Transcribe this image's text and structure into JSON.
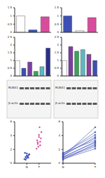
{
  "chart_data": [
    {
      "type": "bar",
      "categories": [
        null,
        null,
        null
      ],
      "values": [
        1,
        0.15,
        0.95
      ],
      "colors": [
        "#ffffff",
        "#3d4fb5",
        "#d84c9c"
      ],
      "ylim": [
        0,
        1.5
      ],
      "yticks": [
        0,
        0.5,
        1,
        1.5
      ],
      "tick_labels": "y"
    },
    {
      "type": "bar",
      "categories": [
        null,
        null,
        null
      ],
      "values": [
        1,
        0.1,
        0.9
      ],
      "colors": [
        "#3d4fb5",
        "#ffffff",
        "#d84c9c"
      ],
      "ylim": [
        0,
        1.5
      ],
      "yticks": [
        0,
        0.5,
        1,
        1.5
      ],
      "tick_labels": "y"
    },
    {
      "type": "bar",
      "categories": [
        null,
        null,
        null,
        null,
        null,
        null
      ],
      "values": [
        1,
        0.5,
        0.9,
        0.3,
        0.6,
        1.8
      ],
      "colors": [
        "#ffffff",
        "#3d4fb5",
        "#7b3fa0",
        "#3aa35a",
        "#5fb8c2",
        "#2b2f8a"
      ],
      "ylim": [
        0,
        2.5
      ],
      "yticks": [
        0,
        0.5,
        1,
        1.5,
        2,
        2.5
      ],
      "tick_labels": "y"
    },
    {
      "type": "bar",
      "categories": [
        null,
        null,
        null,
        null,
        null,
        null
      ],
      "values": [
        1,
        1.9,
        1.6,
        1.7,
        1.4,
        1
      ],
      "colors": [
        "#ffffff",
        "#7b3fa0",
        "#3aa35a",
        "#5fb8c2",
        "#8a3f9e",
        "#3d4fb5"
      ],
      "ylim": [
        0,
        2.5
      ],
      "yticks": [
        0,
        0.5,
        1,
        1.5,
        2,
        2.5
      ],
      "tick_labels": "y"
    },
    {
      "type": "scatter",
      "xlim": [
        0,
        3
      ],
      "xticks": [
        {
          "value": 1,
          "label": "N"
        },
        {
          "value": 2,
          "label": "T"
        }
      ],
      "ylim": [
        0,
        6
      ],
      "yticks": [
        0,
        2,
        4,
        6
      ],
      "groups": [
        {
          "color": "#3d4fb5",
          "x": [
            0.8,
            0.9,
            1.0,
            1.1,
            1.2,
            0.85,
            0.95,
            1.05,
            1.15,
            0.9,
            1.0,
            1.1
          ],
          "values": [
            0.6,
            0.9,
            1.1,
            0.8,
            1.3,
            1.5,
            0.7,
            1.0,
            1.2,
            0.5,
            1.4,
            0.9
          ]
        },
        {
          "color": "#d84c9c",
          "x": [
            1.8,
            1.9,
            2.0,
            2.1,
            2.2,
            1.85,
            1.95,
            2.05,
            2.15,
            1.9,
            2.0,
            2.1
          ],
          "values": [
            2.1,
            3.0,
            3.8,
            2.6,
            4.5,
            3.3,
            2.4,
            5.2,
            3.6,
            2.8,
            4.1,
            3.1
          ]
        }
      ]
    },
    {
      "type": "line",
      "categories": [
        "N",
        "T"
      ],
      "ylim": [
        0,
        6
      ],
      "yticks": [
        0,
        2,
        4,
        6
      ],
      "color": "#3d4fb5",
      "pairs": [
        [
          0.6,
          2.1
        ],
        [
          0.9,
          3.0
        ],
        [
          1.1,
          3.8
        ],
        [
          0.8,
          2.6
        ],
        [
          1.3,
          4.5
        ],
        [
          1.5,
          3.3
        ],
        [
          0.7,
          2.4
        ],
        [
          1.0,
          5.2
        ],
        [
          1.2,
          3.6
        ],
        [
          0.5,
          2.8
        ],
        [
          1.4,
          4.1
        ],
        [
          0.9,
          3.1
        ]
      ]
    }
  ],
  "blots": [
    {
      "labels": [
        "RUNX1",
        "β-actin"
      ]
    },
    {
      "labels": [
        "RUNX1",
        "β-actin"
      ]
    }
  ]
}
